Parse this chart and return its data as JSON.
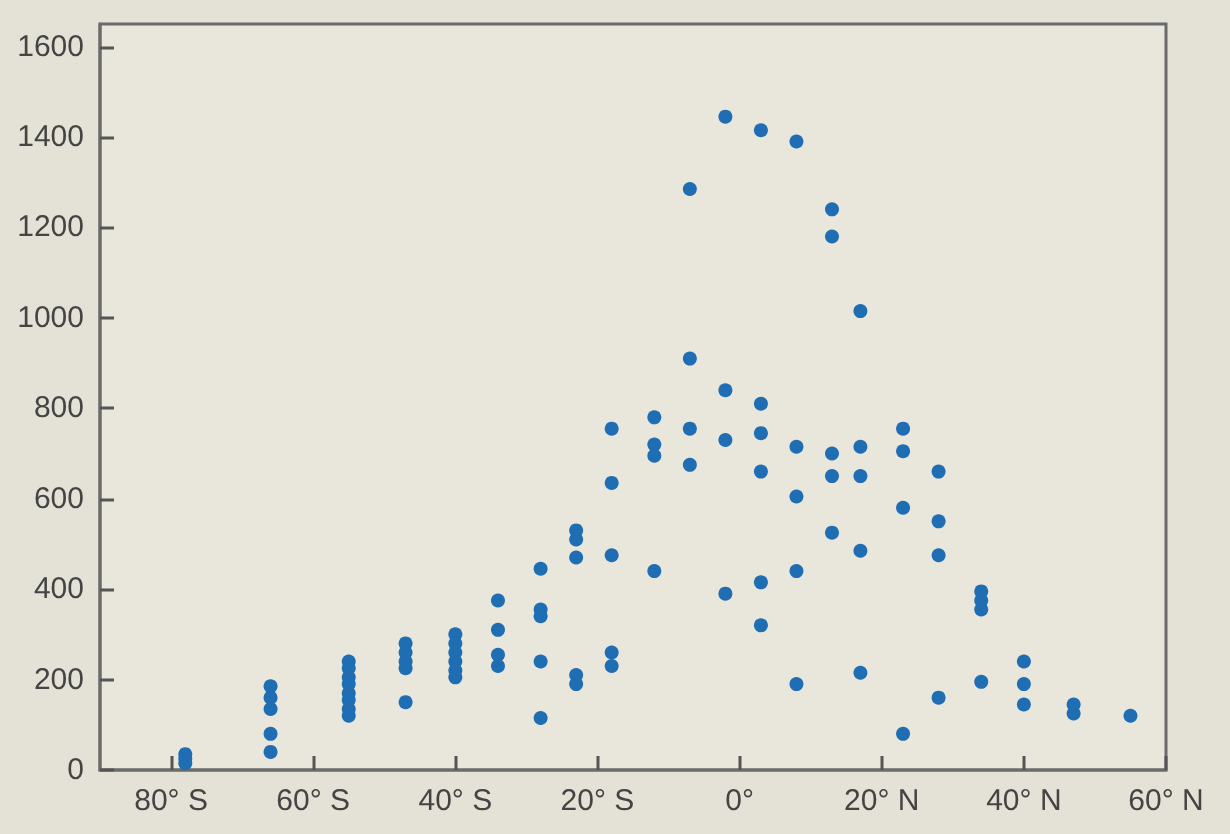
{
  "chart_data": {
    "type": "scatter",
    "marker": "circle",
    "xlim": [
      -90,
      60
    ],
    "ylim": [
      0,
      1650
    ],
    "xticks": [
      {
        "value": -80,
        "label": "80° S"
      },
      {
        "value": -60,
        "label": "60° S"
      },
      {
        "value": -40,
        "label": "40° S"
      },
      {
        "value": -20,
        "label": "20° S"
      },
      {
        "value": 0,
        "label": "0°"
      },
      {
        "value": 20,
        "label": "20° N"
      },
      {
        "value": 40,
        "label": "40° N"
      },
      {
        "value": 60,
        "label": "60° N"
      }
    ],
    "yticks": [
      0,
      200,
      400,
      600,
      800,
      1000,
      1200,
      1400,
      1600
    ],
    "series": [
      {
        "color": "#1f6db3",
        "x": [
          -78,
          -78,
          -78,
          -66,
          -66,
          -66,
          -66,
          -66,
          -55,
          -55,
          -55,
          -55,
          -55,
          -55,
          -55,
          -55,
          -47,
          -47,
          -47,
          -47,
          -47,
          -40,
          -40,
          -40,
          -40,
          -40,
          -40,
          -34,
          -34,
          -34,
          -34,
          -28,
          -28,
          -28,
          -28,
          -28,
          -23,
          -23,
          -23,
          -23,
          -23,
          -18,
          -18,
          -18,
          -18,
          -18,
          -12,
          -12,
          -12,
          -12,
          -7,
          -7,
          -7,
          -7,
          -2,
          -2,
          -2,
          -2,
          3,
          3,
          3,
          3,
          3,
          3,
          8,
          8,
          8,
          8,
          8,
          13,
          13,
          13,
          13,
          13,
          17,
          17,
          17,
          17,
          17,
          23,
          23,
          23,
          23,
          28,
          28,
          28,
          28,
          34,
          34,
          34,
          34,
          40,
          40,
          40,
          47,
          47,
          55
        ],
        "values": [
          35,
          25,
          15,
          185,
          160,
          135,
          80,
          40,
          240,
          225,
          205,
          190,
          170,
          155,
          135,
          120,
          280,
          260,
          240,
          225,
          150,
          300,
          280,
          260,
          240,
          220,
          205,
          375,
          310,
          255,
          230,
          445,
          355,
          340,
          240,
          115,
          530,
          510,
          470,
          210,
          190,
          755,
          635,
          475,
          260,
          230,
          780,
          720,
          695,
          440,
          1285,
          910,
          755,
          675,
          1445,
          840,
          730,
          390,
          1415,
          810,
          745,
          660,
          415,
          320,
          1390,
          715,
          605,
          440,
          190,
          1240,
          1180,
          700,
          650,
          525,
          1015,
          715,
          650,
          485,
          215,
          755,
          705,
          580,
          80,
          660,
          550,
          475,
          160,
          395,
          375,
          355,
          195,
          240,
          190,
          145,
          145,
          125,
          120
        ]
      }
    ]
  }
}
